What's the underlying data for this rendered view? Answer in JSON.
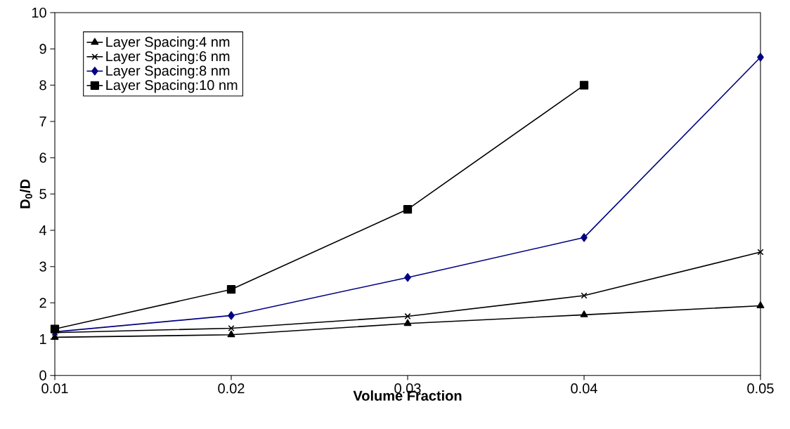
{
  "chart_data": {
    "type": "line",
    "xlabel": "Volume Fraction",
    "ylabel": "D$_{0}$/D",
    "x": [
      0.01,
      0.02,
      0.03,
      0.04,
      0.05
    ],
    "series": [
      {
        "name": "Layer Spacing:4 nm",
        "color": "#000000",
        "marker": "triangle",
        "values": [
          1.05,
          1.12,
          1.43,
          1.67,
          1.92
        ]
      },
      {
        "name": "Layer Spacing:6 nm",
        "color": "#000000",
        "marker": "cross",
        "values": [
          1.18,
          1.3,
          1.63,
          2.2,
          3.4
        ]
      },
      {
        "name": "Layer Spacing:8 nm",
        "color": "#000080",
        "marker": "diamond",
        "values": [
          1.2,
          1.65,
          2.7,
          3.8,
          8.77
        ]
      },
      {
        "name": "Layer Spacing:10 nm",
        "color": "#000000",
        "marker": "square",
        "values": [
          1.28,
          2.37,
          4.58,
          8.0,
          null
        ]
      }
    ],
    "xlim": [
      0.01,
      0.05
    ],
    "xticks": [
      0.01,
      0.02,
      0.03,
      0.04,
      0.05
    ],
    "ylim": [
      0,
      10
    ],
    "yticks": [
      0,
      1,
      2,
      3,
      4,
      5,
      6,
      7,
      8,
      9,
      10
    ],
    "grid": false,
    "legend": "top left",
    "line_style": "solid"
  }
}
